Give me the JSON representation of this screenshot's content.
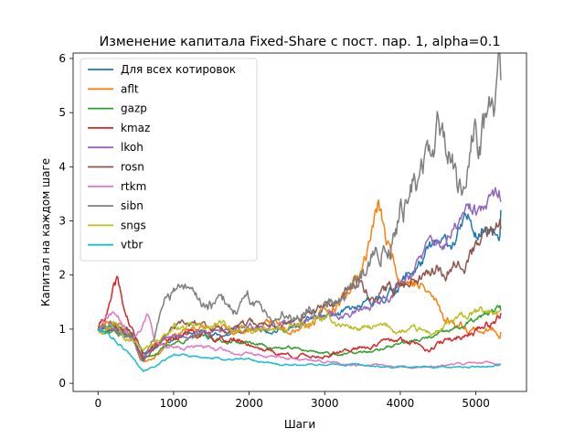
{
  "chart_data": {
    "type": "line",
    "title": "Изменение капитала Fixed-Share с пост. пар. 1, alpha=0.1",
    "xlabel": "Шаги",
    "ylabel": "Капитал на каждом шаге",
    "xlim": [
      -330,
      5670
    ],
    "ylim": [
      -0.15,
      6.1
    ],
    "xticks": [
      0,
      1000,
      2000,
      3000,
      4000,
      5000
    ],
    "yticks": [
      0,
      1,
      2,
      3,
      4,
      5,
      6
    ],
    "grid": false,
    "legend": "top-left",
    "series": [
      {
        "name": "Для всех котировок",
        "color": "#1f77b4",
        "volatility": 0.035,
        "seed": 11,
        "points": [
          [
            0,
            1.0
          ],
          [
            200,
            1.15
          ],
          [
            450,
            0.95
          ],
          [
            600,
            0.55
          ],
          [
            800,
            0.75
          ],
          [
            1000,
            0.85
          ],
          [
            1300,
            0.95
          ],
          [
            1600,
            0.9
          ],
          [
            2000,
            0.95
          ],
          [
            2300,
            1.05
          ],
          [
            2600,
            1.0
          ],
          [
            2900,
            1.2
          ],
          [
            3200,
            1.25
          ],
          [
            3500,
            1.35
          ],
          [
            3800,
            1.6
          ],
          [
            4100,
            2.0
          ],
          [
            4400,
            2.4
          ],
          [
            4650,
            2.5
          ],
          [
            4800,
            2.8
          ],
          [
            5100,
            2.95
          ],
          [
            5330,
            3.2
          ]
        ]
      },
      {
        "name": "aflt",
        "color": "#ff7f0e",
        "volatility": 0.045,
        "seed": 23,
        "points": [
          [
            0,
            1.0
          ],
          [
            200,
            1.2
          ],
          [
            450,
            0.9
          ],
          [
            600,
            0.4
          ],
          [
            800,
            0.6
          ],
          [
            1000,
            0.85
          ],
          [
            1300,
            1.05
          ],
          [
            1600,
            0.95
          ],
          [
            2000,
            1.0
          ],
          [
            2400,
            1.1
          ],
          [
            2800,
            1.2
          ],
          [
            3100,
            1.35
          ],
          [
            3300,
            1.7
          ],
          [
            3500,
            2.2
          ],
          [
            3700,
            3.2
          ],
          [
            3850,
            2.4
          ],
          [
            4000,
            2.1
          ],
          [
            4200,
            1.9
          ],
          [
            4400,
            1.6
          ],
          [
            4600,
            1.2
          ],
          [
            4800,
            1.1
          ],
          [
            5100,
            1.0
          ],
          [
            5330,
            0.95
          ]
        ]
      },
      {
        "name": "gazp",
        "color": "#2ca02c",
        "volatility": 0.03,
        "seed": 37,
        "points": [
          [
            0,
            1.0
          ],
          [
            200,
            1.0
          ],
          [
            450,
            0.85
          ],
          [
            600,
            0.45
          ],
          [
            800,
            0.6
          ],
          [
            1000,
            0.75
          ],
          [
            1300,
            0.85
          ],
          [
            1600,
            0.8
          ],
          [
            2000,
            0.75
          ],
          [
            2400,
            0.65
          ],
          [
            2800,
            0.6
          ],
          [
            3100,
            0.55
          ],
          [
            3400,
            0.55
          ],
          [
            3700,
            0.6
          ],
          [
            4000,
            0.75
          ],
          [
            4300,
            0.8
          ],
          [
            4600,
            0.9
          ],
          [
            4900,
            1.1
          ],
          [
            5100,
            1.2
          ],
          [
            5330,
            1.35
          ]
        ]
      },
      {
        "name": "kmaz",
        "color": "#d62728",
        "volatility": 0.045,
        "seed": 41,
        "points": [
          [
            0,
            1.0
          ],
          [
            150,
            1.4
          ],
          [
            250,
            1.8
          ],
          [
            350,
            1.3
          ],
          [
            500,
            0.8
          ],
          [
            600,
            0.5
          ],
          [
            800,
            0.7
          ],
          [
            1000,
            0.9
          ],
          [
            1300,
            0.95
          ],
          [
            1600,
            0.85
          ],
          [
            2000,
            0.75
          ],
          [
            2400,
            0.55
          ],
          [
            2800,
            0.5
          ],
          [
            3200,
            0.55
          ],
          [
            3500,
            0.7
          ],
          [
            3800,
            0.75
          ],
          [
            4100,
            0.75
          ],
          [
            4400,
            0.7
          ],
          [
            4700,
            0.8
          ],
          [
            5000,
            1.0
          ],
          [
            5200,
            1.15
          ],
          [
            5330,
            1.3
          ]
        ]
      },
      {
        "name": "lkoh",
        "color": "#9467bd",
        "volatility": 0.035,
        "seed": 53,
        "points": [
          [
            0,
            1.0
          ],
          [
            200,
            1.1
          ],
          [
            450,
            0.9
          ],
          [
            600,
            0.55
          ],
          [
            800,
            0.75
          ],
          [
            1000,
            0.85
          ],
          [
            1300,
            0.95
          ],
          [
            1600,
            0.95
          ],
          [
            2000,
            1.0
          ],
          [
            2300,
            1.05
          ],
          [
            2600,
            1.05
          ],
          [
            2900,
            1.25
          ],
          [
            3200,
            1.25
          ],
          [
            3500,
            1.35
          ],
          [
            3800,
            1.6
          ],
          [
            4100,
            2.05
          ],
          [
            4400,
            2.5
          ],
          [
            4650,
            2.6
          ],
          [
            4800,
            3.0
          ],
          [
            5100,
            3.1
          ],
          [
            5330,
            3.35
          ]
        ]
      },
      {
        "name": "rosn",
        "color": "#8c564b",
        "volatility": 0.04,
        "seed": 67,
        "points": [
          [
            0,
            1.0
          ],
          [
            200,
            1.1
          ],
          [
            450,
            1.0
          ],
          [
            600,
            0.5
          ],
          [
            800,
            0.8
          ],
          [
            1000,
            1.0
          ],
          [
            1300,
            1.05
          ],
          [
            1600,
            1.0
          ],
          [
            2000,
            1.05
          ],
          [
            2300,
            1.1
          ],
          [
            2600,
            1.15
          ],
          [
            2900,
            1.3
          ],
          [
            3200,
            1.5
          ],
          [
            3450,
            1.9
          ],
          [
            3700,
            1.6
          ],
          [
            4000,
            1.8
          ],
          [
            4300,
            2.2
          ],
          [
            4600,
            2.2
          ],
          [
            4800,
            2.5
          ],
          [
            5100,
            2.6
          ],
          [
            5330,
            2.85
          ]
        ]
      },
      {
        "name": "rtkm",
        "color": "#e377c2",
        "volatility": 0.035,
        "seed": 71,
        "points": [
          [
            0,
            1.0
          ],
          [
            200,
            1.3
          ],
          [
            300,
            1.1
          ],
          [
            450,
            0.8
          ],
          [
            550,
            1.0
          ],
          [
            650,
            1.3
          ],
          [
            750,
            0.8
          ],
          [
            900,
            0.7
          ],
          [
            1200,
            0.7
          ],
          [
            1500,
            0.65
          ],
          [
            1800,
            0.55
          ],
          [
            2200,
            0.5
          ],
          [
            2600,
            0.45
          ],
          [
            3000,
            0.4
          ],
          [
            3500,
            0.35
          ],
          [
            4000,
            0.3
          ],
          [
            4500,
            0.3
          ],
          [
            4800,
            0.35
          ],
          [
            5100,
            0.4
          ],
          [
            5330,
            0.35
          ]
        ]
      },
      {
        "name": "sibn",
        "color": "#7f7f7f",
        "volatility": 0.055,
        "seed": 83,
        "points": [
          [
            0,
            1.0
          ],
          [
            200,
            1.0
          ],
          [
            450,
            0.8
          ],
          [
            600,
            0.5
          ],
          [
            750,
            1.0
          ],
          [
            900,
            1.5
          ],
          [
            1000,
            1.7
          ],
          [
            1200,
            1.55
          ],
          [
            1500,
            1.45
          ],
          [
            1800,
            1.4
          ],
          [
            2000,
            1.45
          ],
          [
            2300,
            1.3
          ],
          [
            2600,
            1.35
          ],
          [
            2900,
            1.5
          ],
          [
            3200,
            1.7
          ],
          [
            3400,
            1.9
          ],
          [
            3600,
            2.2
          ],
          [
            3800,
            2.8
          ],
          [
            3950,
            3.2
          ],
          [
            4100,
            3.6
          ],
          [
            4300,
            3.9
          ],
          [
            4500,
            4.4
          ],
          [
            4650,
            4.5
          ],
          [
            4750,
            3.8
          ],
          [
            4850,
            4.2
          ],
          [
            5000,
            4.6
          ],
          [
            5150,
            4.8
          ],
          [
            5250,
            5.2
          ],
          [
            5330,
            5.6
          ]
        ]
      },
      {
        "name": "sngs",
        "color": "#bcbd22",
        "volatility": 0.04,
        "seed": 97,
        "points": [
          [
            0,
            1.0
          ],
          [
            200,
            1.2
          ],
          [
            450,
            0.9
          ],
          [
            600,
            0.6
          ],
          [
            800,
            0.85
          ],
          [
            1000,
            1.05
          ],
          [
            1300,
            1.0
          ],
          [
            1600,
            1.05
          ],
          [
            2000,
            0.95
          ],
          [
            2300,
            0.95
          ],
          [
            2600,
            1.0
          ],
          [
            2900,
            1.15
          ],
          [
            3200,
            1.1
          ],
          [
            3500,
            1.0
          ],
          [
            3800,
            1.0
          ],
          [
            4100,
            0.95
          ],
          [
            4400,
            0.9
          ],
          [
            4700,
            1.1
          ],
          [
            5000,
            1.25
          ],
          [
            5200,
            1.3
          ],
          [
            5330,
            1.35
          ]
        ]
      },
      {
        "name": "vtbr",
        "color": "#17becf",
        "volatility": 0.03,
        "seed": 101,
        "points": [
          [
            0,
            1.0
          ],
          [
            200,
            0.85
          ],
          [
            450,
            0.5
          ],
          [
            600,
            0.25
          ],
          [
            800,
            0.35
          ],
          [
            1000,
            0.5
          ],
          [
            1300,
            0.5
          ],
          [
            1600,
            0.45
          ],
          [
            2000,
            0.45
          ],
          [
            2300,
            0.35
          ],
          [
            2600,
            0.35
          ],
          [
            3000,
            0.35
          ],
          [
            3400,
            0.35
          ],
          [
            3800,
            0.3
          ],
          [
            4200,
            0.3
          ],
          [
            4600,
            0.3
          ],
          [
            4900,
            0.3
          ],
          [
            5330,
            0.35
          ]
        ]
      }
    ]
  }
}
